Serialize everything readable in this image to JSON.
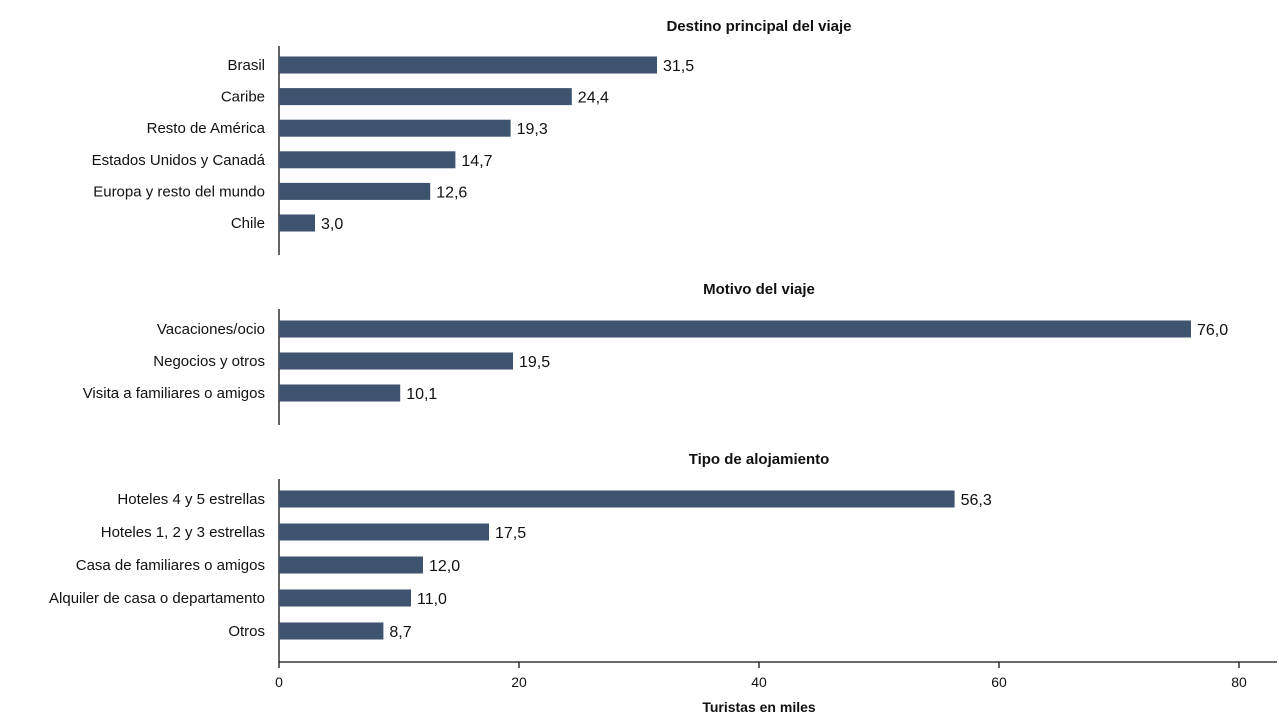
{
  "chart_data": {
    "type": "bar",
    "orientation": "horizontal",
    "bar_color": "#3d536e",
    "xlabel": "Turistas en miles",
    "xlim": [
      0,
      80
    ],
    "xticks": [
      0,
      20,
      40,
      60,
      80
    ],
    "grid": false,
    "legend": "none",
    "panels": [
      {
        "title": "Destino principal del viaje",
        "categories": [
          "Brasil",
          "Caribe",
          "Resto de América",
          "Estados Unidos y Canadá",
          "Europa y resto del mundo",
          "Chile"
        ],
        "values": [
          31.5,
          24.4,
          19.3,
          14.7,
          12.6,
          3.0
        ],
        "value_labels": [
          "31,5",
          "24,4",
          "19,3",
          "14,7",
          "12,6",
          "3,0"
        ]
      },
      {
        "title": "Motivo del viaje",
        "categories": [
          "Vacaciones/ocio",
          "Negocios y otros",
          "Visita a familiares o amigos"
        ],
        "values": [
          76.0,
          19.5,
          10.1
        ],
        "value_labels": [
          "76,0",
          "19,5",
          "10,1"
        ]
      },
      {
        "title": "Tipo de alojamiento",
        "categories": [
          "Hoteles 4 y 5 estrellas",
          "Hoteles 1, 2 y 3 estrellas",
          "Casa de familiares o amigos",
          "Alquiler de casa o departamento",
          "Otros"
        ],
        "values": [
          56.3,
          17.5,
          12.0,
          11.0,
          8.7
        ],
        "value_labels": [
          "56,3",
          "17,5",
          "12,0",
          "11,0",
          "8,7"
        ]
      }
    ]
  }
}
